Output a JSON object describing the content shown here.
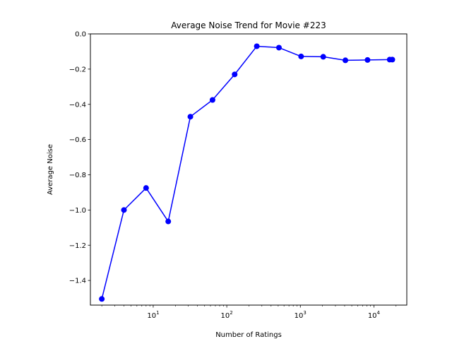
{
  "chart_data": {
    "type": "line",
    "title": "Average Noise Trend for Movie #223",
    "xlabel": "Number of Ratings",
    "ylabel": "Average Noise",
    "xscale": "log",
    "xlim": [
      1.4,
      28000
    ],
    "ylim": [
      -1.54,
      0.0
    ],
    "x_ticks": [
      {
        "value": 10,
        "base": "10",
        "exp": "1"
      },
      {
        "value": 100,
        "base": "10",
        "exp": "2"
      },
      {
        "value": 1000,
        "base": "10",
        "exp": "3"
      },
      {
        "value": 10000,
        "base": "10",
        "exp": "4"
      }
    ],
    "y_ticks": [
      {
        "value": 0.0,
        "label": "0.0"
      },
      {
        "value": -0.2,
        "label": "−0.2"
      },
      {
        "value": -0.4,
        "label": "−0.4"
      },
      {
        "value": -0.6,
        "label": "−0.6"
      },
      {
        "value": -0.8,
        "label": "−0.8"
      },
      {
        "value": -1.0,
        "label": "−1.0"
      },
      {
        "value": -1.2,
        "label": "−1.2"
      },
      {
        "value": -1.4,
        "label": "−1.4"
      }
    ],
    "grid": false,
    "series": [
      {
        "color": "#0000ff",
        "marker": "circle",
        "points": [
          {
            "x": 2,
            "y": -1.505
          },
          {
            "x": 4,
            "y": -1.0
          },
          {
            "x": 8,
            "y": -0.875
          },
          {
            "x": 16,
            "y": -1.065
          },
          {
            "x": 32,
            "y": -0.47
          },
          {
            "x": 64,
            "y": -0.375
          },
          {
            "x": 128,
            "y": -0.23
          },
          {
            "x": 256,
            "y": -0.07
          },
          {
            "x": 512,
            "y": -0.078
          },
          {
            "x": 1024,
            "y": -0.128
          },
          {
            "x": 2048,
            "y": -0.13
          },
          {
            "x": 4096,
            "y": -0.15
          },
          {
            "x": 8192,
            "y": -0.148
          },
          {
            "x": 16384,
            "y": -0.146
          },
          {
            "x": 17800,
            "y": -0.146
          }
        ]
      }
    ]
  }
}
